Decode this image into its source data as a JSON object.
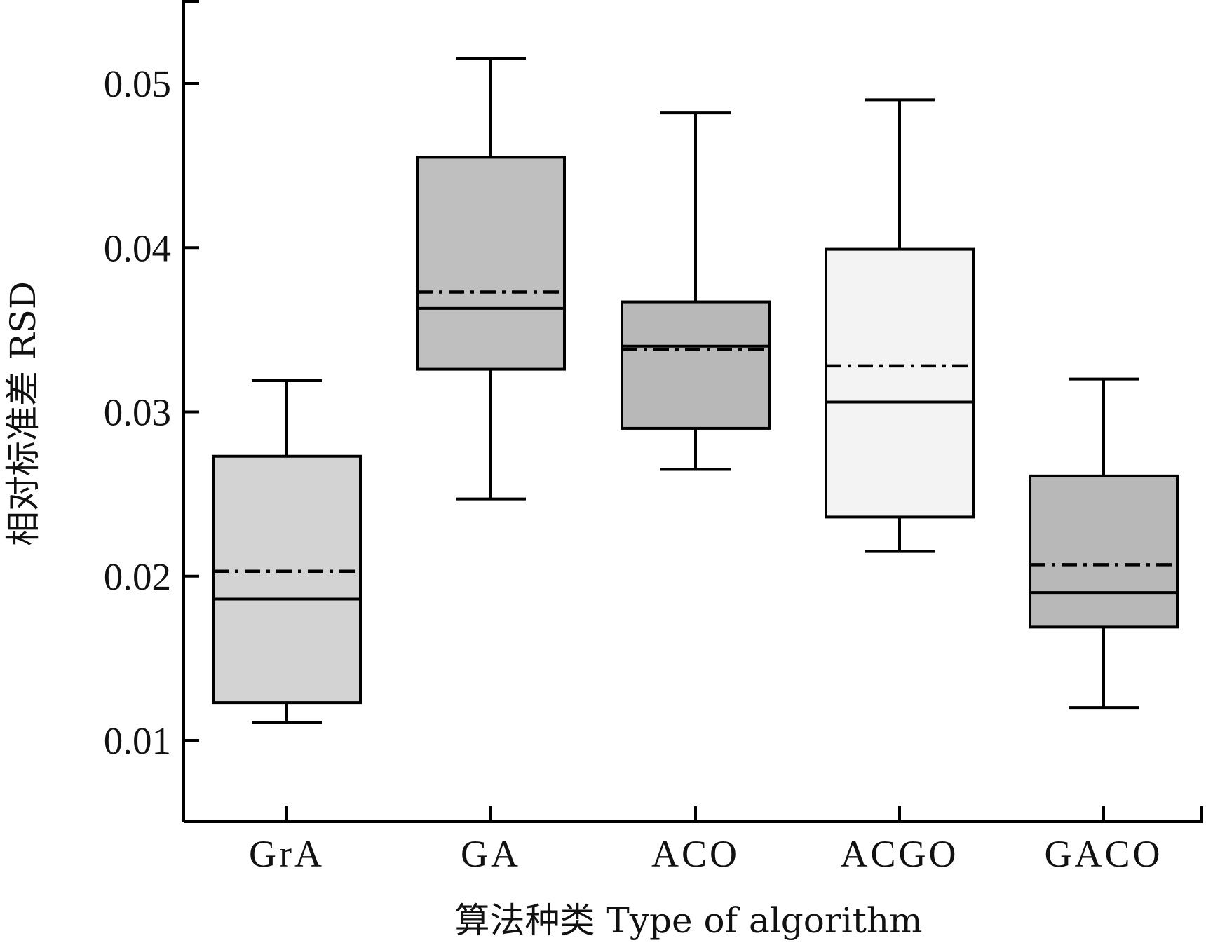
{
  "chart_data": {
    "type": "box",
    "xlabel": "算法种类 Type of algorithm",
    "ylabel": "相对标准差 RSD",
    "ylim": [
      0.005,
      0.055
    ],
    "yticks": [
      "0.01",
      "0.02",
      "0.03",
      "0.04",
      "0.05"
    ],
    "ytick_values": [
      0.01,
      0.02,
      0.03,
      0.04,
      0.05
    ],
    "categories": [
      "GrA",
      "GA",
      "ACO",
      "ACGO",
      "GACO"
    ],
    "boxes": [
      {
        "name": "GrA",
        "whisker_low": 0.0111,
        "q1": 0.0123,
        "median": 0.0186,
        "mean": 0.0203,
        "q3": 0.0273,
        "whisker_high": 0.0319,
        "color": "#d3d3d3"
      },
      {
        "name": "GA",
        "whisker_low": 0.0247,
        "q1": 0.0326,
        "median": 0.0363,
        "mean": 0.0373,
        "q3": 0.0455,
        "whisker_high": 0.0515,
        "color": "#bfbfbf"
      },
      {
        "name": "ACO",
        "whisker_low": 0.0265,
        "q1": 0.029,
        "median": 0.034,
        "mean": 0.0338,
        "q3": 0.0367,
        "whisker_high": 0.0482,
        "color": "#b8b8b8"
      },
      {
        "name": "ACGO",
        "whisker_low": 0.0215,
        "q1": 0.0236,
        "median": 0.0306,
        "mean": 0.0328,
        "q3": 0.0399,
        "whisker_high": 0.049,
        "color": "#f3f3f3"
      },
      {
        "name": "GACO",
        "whisker_low": 0.012,
        "q1": 0.0169,
        "median": 0.019,
        "mean": 0.0207,
        "q3": 0.0261,
        "whisker_high": 0.032,
        "color": "#b8b8b8"
      }
    ],
    "legend": "none",
    "grid": false
  }
}
